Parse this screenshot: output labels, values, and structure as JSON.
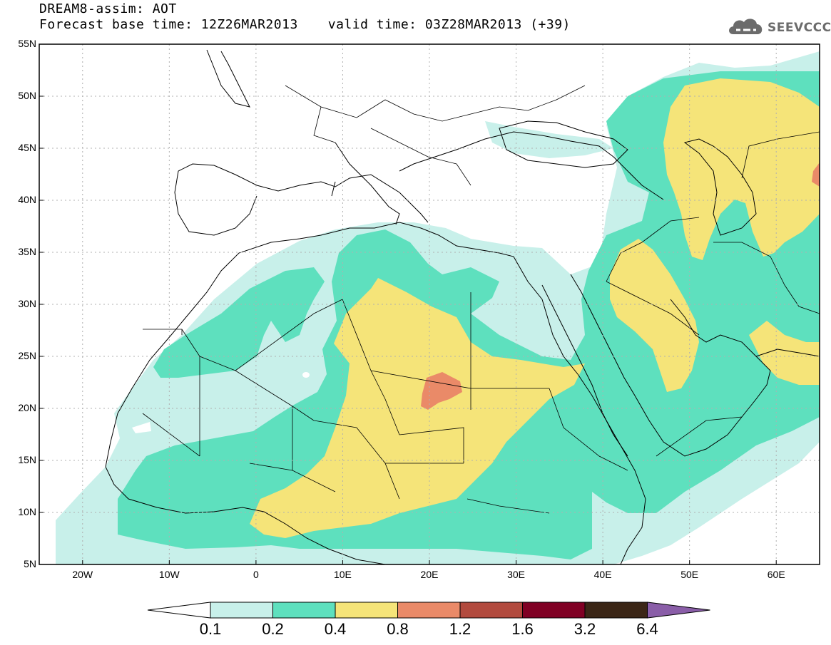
{
  "header": {
    "title": "DREAM8-assim: AOT",
    "base_time": "Forecast base time: 12Z26MAR2013",
    "valid_time": "valid time: 03Z28MAR2013 (+39)"
  },
  "logo": {
    "text": "SEEVCCC",
    "icon": "cloud-icon"
  },
  "map": {
    "type": "filled-contour-map",
    "variable": "AOT",
    "lon_range": [
      -25,
      65
    ],
    "lat_range": [
      5,
      55
    ],
    "grid": true,
    "lat_ticks": [
      "55N",
      "50N",
      "45N",
      "40N",
      "35N",
      "30N",
      "25N",
      "20N",
      "15N",
      "10N",
      "5N"
    ],
    "lon_ticks": [
      "20W",
      "10W",
      "0",
      "10E",
      "20E",
      "30E",
      "40E",
      "50E",
      "60E"
    ]
  },
  "colorbar": {
    "levels": [
      "0.1",
      "0.2",
      "0.4",
      "0.8",
      "1.2",
      "1.6",
      "3.2",
      "6.4"
    ],
    "colors": [
      "#c8f0ea",
      "#5ee0be",
      "#f5e479",
      "#ea8a68",
      "#b24a3e",
      "#800024",
      "#3b2616",
      "#8a5ea8"
    ],
    "low_color": "#ffffff"
  }
}
